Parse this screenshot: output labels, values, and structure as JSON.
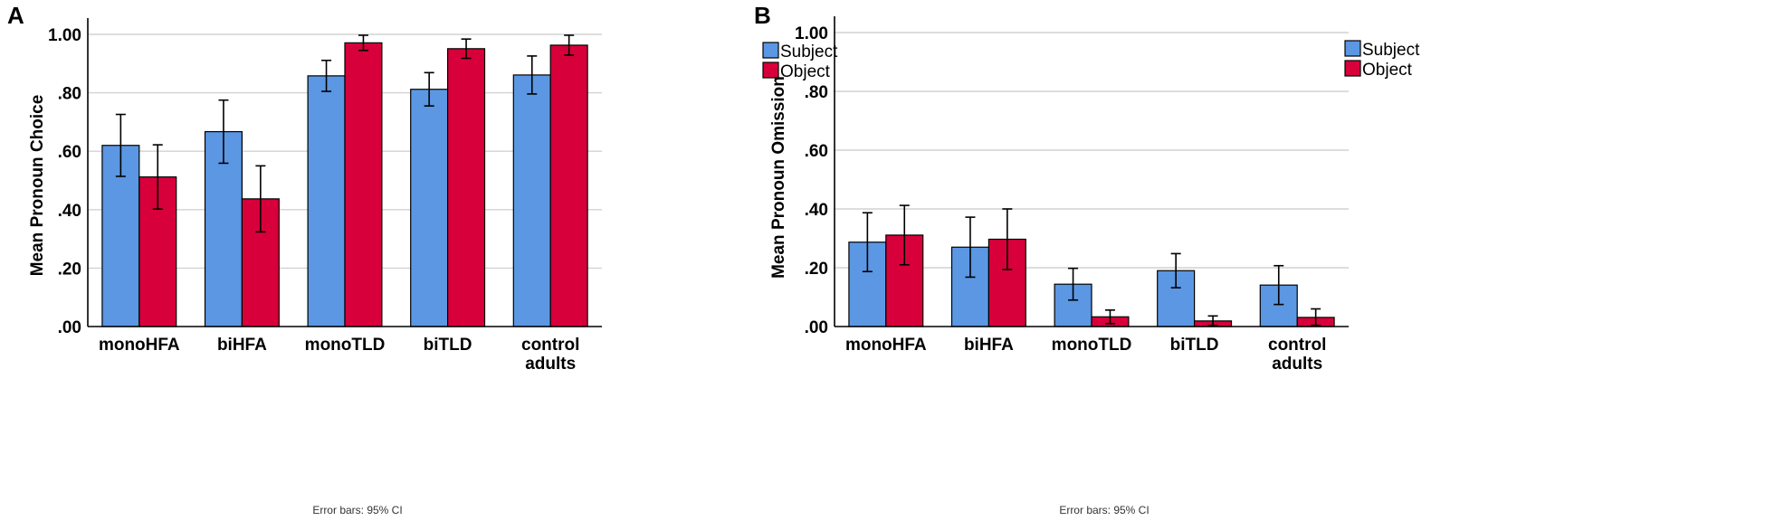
{
  "chart_data": [
    {
      "panel": "A",
      "type": "bar",
      "title": "",
      "xlabel": "",
      "ylabel": "Mean Pronoun Choice",
      "ylim": [
        0,
        1.0
      ],
      "yticks": [
        ".00",
        ".20",
        ".40",
        ".60",
        ".80",
        "1.00"
      ],
      "categories": [
        "monoHFA",
        "biHFA",
        "monoTLD",
        "biTLD",
        "control adults"
      ],
      "series": [
        {
          "name": "Subject",
          "color": "#5b97e3",
          "values": [
            0.62,
            0.667,
            0.858,
            0.812,
            0.861
          ],
          "ci_low": [
            0.514,
            0.559,
            0.805,
            0.755,
            0.796
          ],
          "ci_high": [
            0.726,
            0.775,
            0.911,
            0.869,
            0.926
          ]
        },
        {
          "name": "Object",
          "color": "#d7003a",
          "values": [
            0.512,
            0.437,
            0.971,
            0.951,
            0.963
          ],
          "ci_low": [
            0.402,
            0.324,
            0.945,
            0.918,
            0.929
          ],
          "ci_high": [
            0.622,
            0.55,
            0.997,
            0.984,
            0.997
          ]
        }
      ],
      "legend": "top-right",
      "grid": true,
      "footnote": "Error bars: 95% CI"
    },
    {
      "panel": "B",
      "type": "bar",
      "title": "",
      "xlabel": "",
      "ylabel": "Mean Pronoun Omission",
      "ylim": [
        0,
        1.0
      ],
      "yticks": [
        ".00",
        ".20",
        ".40",
        ".60",
        ".80",
        "1.00"
      ],
      "categories": [
        "monoHFA",
        "biHFA",
        "monoTLD",
        "biTLD",
        "control adults"
      ],
      "series": [
        {
          "name": "Subject",
          "color": "#5b97e3",
          "values": [
            0.287,
            0.27,
            0.144,
            0.19,
            0.141
          ],
          "ci_low": [
            0.187,
            0.168,
            0.09,
            0.132,
            0.075
          ],
          "ci_high": [
            0.387,
            0.372,
            0.198,
            0.248,
            0.207
          ]
        },
        {
          "name": "Object",
          "color": "#d7003a",
          "values": [
            0.311,
            0.297,
            0.033,
            0.019,
            0.031
          ],
          "ci_low": [
            0.21,
            0.194,
            0.01,
            0.004,
            0.004
          ],
          "ci_high": [
            0.412,
            0.4,
            0.056,
            0.036,
            0.06
          ]
        }
      ],
      "legend": "top-right",
      "grid": true,
      "footnote": "Error bars: 95% CI"
    }
  ]
}
